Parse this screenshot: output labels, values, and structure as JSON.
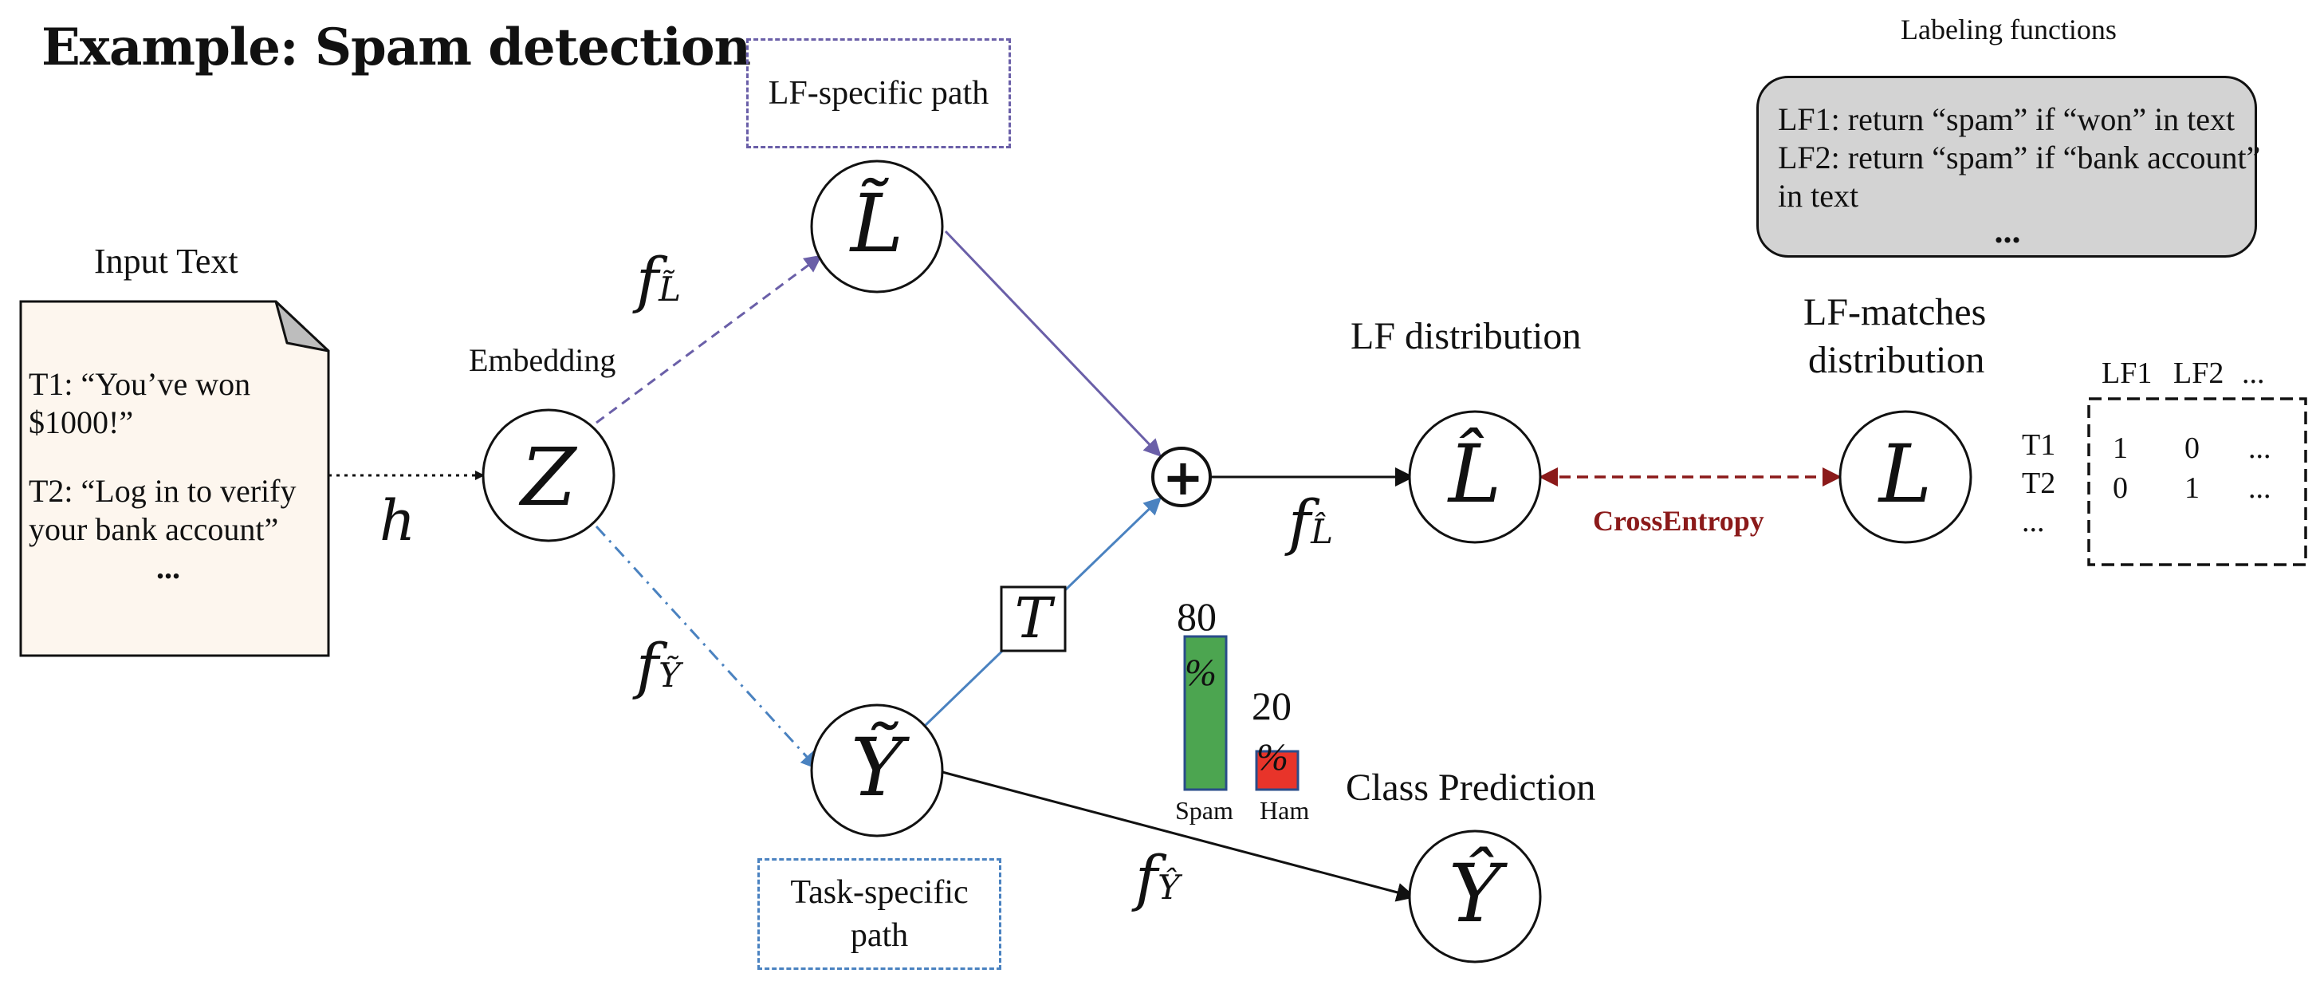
{
  "title": "Example: Spam detection",
  "lf_specific_path": "LF-specific path",
  "task_specific_path": "Task-specific path",
  "input_text": {
    "heading": "Input Text",
    "line1a": "T1: “You’ve won",
    "line1b": "$1000!”",
    "line2a": "T2: “Log in to verify",
    "line2b": "your bank account”",
    "ellipsis": "..."
  },
  "embedding_label": "Embedding",
  "labeling_functions": {
    "heading": "Labeling functions",
    "line1": "LF1: return “spam” if  “won” in text",
    "line2": "LF2: return “spam” if “bank account”",
    "line3": "in text",
    "ellipsis": "..."
  },
  "lf_distribution_label": "LF distribution",
  "lf_matches_label_1": "LF-matches",
  "lf_matches_label_2": "distribution",
  "class_prediction_label": "Class Prediction",
  "cross_entropy_label": "CrossEntropy",
  "nodes": {
    "z": "Z",
    "l_tilde": "L̃",
    "y_tilde": "Ỹ",
    "l_hat": "L̂",
    "y_hat": "Ŷ",
    "l": "L",
    "t": "T",
    "plus": "+"
  },
  "edge_labels": {
    "h": "h",
    "f": "f",
    "sub_l_tilde": "L̃",
    "sub_y_tilde": "Ỹ",
    "sub_l_hat": "L̂",
    "sub_y_hat": "Ŷ"
  },
  "matrix": {
    "col_headers": [
      "LF1",
      "LF2",
      "..."
    ],
    "row_headers": [
      "T1",
      "T2",
      "..."
    ],
    "rows": [
      [
        "1",
        "0",
        "..."
      ],
      [
        "0",
        "1",
        "..."
      ]
    ]
  },
  "prediction_bars": {
    "unit": "%",
    "max": 100,
    "bars": [
      {
        "label": "Spam",
        "value": 80,
        "color": "#4ca550"
      },
      {
        "label": "Ham",
        "value": 20,
        "color": "#e8342a"
      }
    ]
  },
  "colors": {
    "lf_path": "#6a5fa8",
    "task_path": "#4a82c0",
    "cross_entropy": "#8b1a1a",
    "lf_box_fill": "#d3d3d3",
    "input_note_fill": "#fdf6ee"
  }
}
